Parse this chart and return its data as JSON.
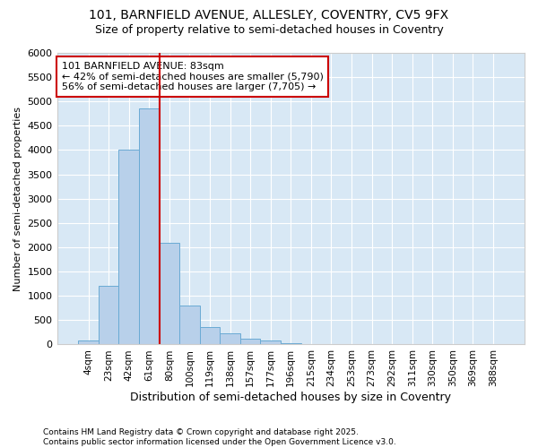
{
  "title_line1": "101, BARNFIELD AVENUE, ALLESLEY, COVENTRY, CV5 9FX",
  "title_line2": "Size of property relative to semi-detached houses in Coventry",
  "xlabel": "Distribution of semi-detached houses by size in Coventry",
  "ylabel": "Number of semi-detached properties",
  "footnote": "Contains HM Land Registry data © Crown copyright and database right 2025.\nContains public sector information licensed under the Open Government Licence v3.0.",
  "bar_categories": [
    "4sqm",
    "23sqm",
    "42sqm",
    "61sqm",
    "80sqm",
    "100sqm",
    "119sqm",
    "138sqm",
    "157sqm",
    "177sqm",
    "196sqm",
    "215sqm",
    "234sqm",
    "253sqm",
    "273sqm",
    "292sqm",
    "311sqm",
    "330sqm",
    "350sqm",
    "369sqm",
    "388sqm"
  ],
  "bar_values": [
    75,
    1200,
    4000,
    4850,
    2100,
    800,
    350,
    230,
    120,
    80,
    30,
    0,
    0,
    0,
    0,
    0,
    0,
    0,
    0,
    0,
    0
  ],
  "bar_color": "#b8d0ea",
  "bar_edge_color": "#6aaad4",
  "fig_bg_color": "#ffffff",
  "plot_bg_color": "#d8e8f5",
  "grid_color": "#ffffff",
  "vline_bar_index": 4,
  "vline_color": "#cc0000",
  "annotation_text": "101 BARNFIELD AVENUE: 83sqm\n← 42% of semi-detached houses are smaller (5,790)\n56% of semi-detached houses are larger (7,705) →",
  "annotation_box_color": "#cc0000",
  "ylim": [
    0,
    6000
  ],
  "yticks": [
    0,
    500,
    1000,
    1500,
    2000,
    2500,
    3000,
    3500,
    4000,
    4500,
    5000,
    5500,
    6000
  ]
}
